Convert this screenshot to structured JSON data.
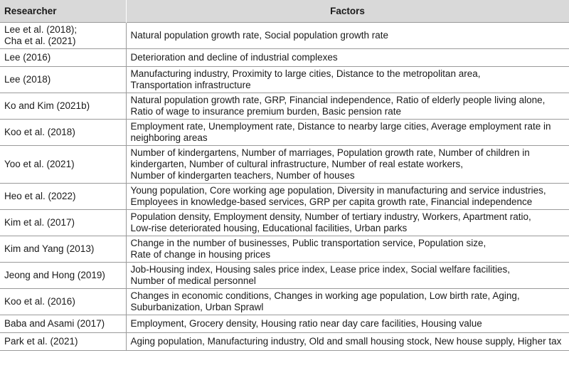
{
  "table": {
    "headers": [
      "Researcher",
      "Factors"
    ],
    "rows": [
      {
        "researcher": [
          "Lee et al. (2018);",
          "Cha et al. (2021)"
        ],
        "factors": [
          "Natural population growth rate, Social population growth rate"
        ]
      },
      {
        "researcher": [
          "Lee (2016)"
        ],
        "factors": [
          "Deterioration and decline of industrial complexes"
        ]
      },
      {
        "researcher": [
          "Lee (2018)"
        ],
        "factors": [
          "Manufacturing industry, Proximity to large cities, Distance to the metropolitan area,",
          "Transportation infrastructure"
        ]
      },
      {
        "researcher": [
          "Ko and Kim (2021b)"
        ],
        "factors": [
          "Natural population growth rate, GRP, Financial independence, Ratio of elderly people living alone,",
          "Ratio of wage to insurance premium burden, Basic pension rate"
        ]
      },
      {
        "researcher": [
          "Koo et al. (2018)"
        ],
        "factors": [
          "Employment rate, Unemployment rate, Distance to nearby large cities, Average employment rate in",
          "neighboring areas"
        ]
      },
      {
        "researcher": [
          "Yoo et al. (2021)"
        ],
        "factors": [
          "Number of kindergartens, Number of marriages, Population growth rate, Number of children in",
          "kindergarten, Number of cultural infrastructure, Number of real estate workers,",
          "Number of kindergarten teachers, Number of houses"
        ]
      },
      {
        "researcher": [
          "Heo et al. (2022)"
        ],
        "factors": [
          "Young population, Core working age population, Diversity in manufacturing and service industries,",
          "Employees in knowledge-based services, GRP per capita growth rate, Financial independence"
        ]
      },
      {
        "researcher": [
          "Kim et al. (2017)"
        ],
        "factors": [
          "Population density, Employment density, Number of tertiary industry, Workers, Apartment ratio,",
          "Low-rise deteriorated housing, Educational facilities, Urban parks"
        ]
      },
      {
        "researcher": [
          "Kim and Yang (2013)"
        ],
        "factors": [
          "Change in the number of businesses, Public transportation service, Population size,",
          "Rate of change in housing prices"
        ]
      },
      {
        "researcher": [
          "Jeong and Hong (2019)"
        ],
        "factors": [
          "Job-Housing index, Housing sales price index, Lease price index, Social welfare facilities,",
          " Number of medical personnel"
        ]
      },
      {
        "researcher": [
          "Koo et al. (2016)"
        ],
        "factors": [
          "Changes in economic conditions, Changes in working age population, Low birth rate, Aging,",
          "Suburbanization, Urban Sprawl"
        ]
      },
      {
        "researcher": [
          "Baba and Asami (2017)"
        ],
        "factors": [
          "Employment, Grocery density, Housing ratio near day care facilities, Housing value"
        ]
      },
      {
        "researcher": [
          "Park et al. (2021)"
        ],
        "factors": [
          "Aging population, Manufacturing industry, Old and small housing stock, New house supply, Higher tax"
        ]
      }
    ]
  }
}
